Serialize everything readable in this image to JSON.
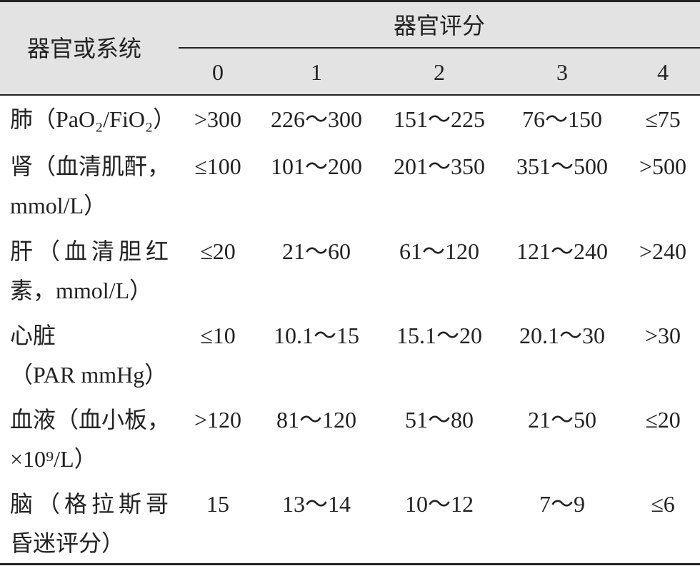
{
  "header": {
    "row_label": "器官或系统",
    "score_label": "器官评分",
    "scores": [
      0,
      1,
      2,
      3,
      4
    ]
  },
  "rows": [
    {
      "label": [
        "肺（PaO₂/FiO₂）"
      ],
      "cells": [
        ">300",
        "226～300",
        "151～225",
        "76～150",
        "≤75"
      ]
    },
    {
      "label": [
        "肾（血清肌酐，",
        "mmol/L）"
      ],
      "cells": [
        "≤100",
        "101～200",
        "201～350",
        "351～500",
        ">500"
      ]
    },
    {
      "label": [
        "肝（血清胆红",
        "素，mmol/L）"
      ],
      "cells": [
        "≤20",
        "21～60",
        "61～120",
        "121～240",
        ">240"
      ]
    },
    {
      "label": [
        "心脏",
        "（PAR mmHg）"
      ],
      "cells": [
        "≤10",
        "10.1～15",
        "15.1～20",
        "20.1～30",
        ">30"
      ]
    },
    {
      "label": [
        "血液（血小板，",
        "×10⁹/L）"
      ],
      "cells": [
        ">120",
        "81～120",
        "51～80",
        "21～50",
        "≤20"
      ]
    },
    {
      "label": [
        "脑（格拉斯哥",
        "昏迷评分）"
      ],
      "cells": [
        "15",
        "13～14",
        "10～12",
        "7～9",
        "≤6"
      ]
    }
  ]
}
